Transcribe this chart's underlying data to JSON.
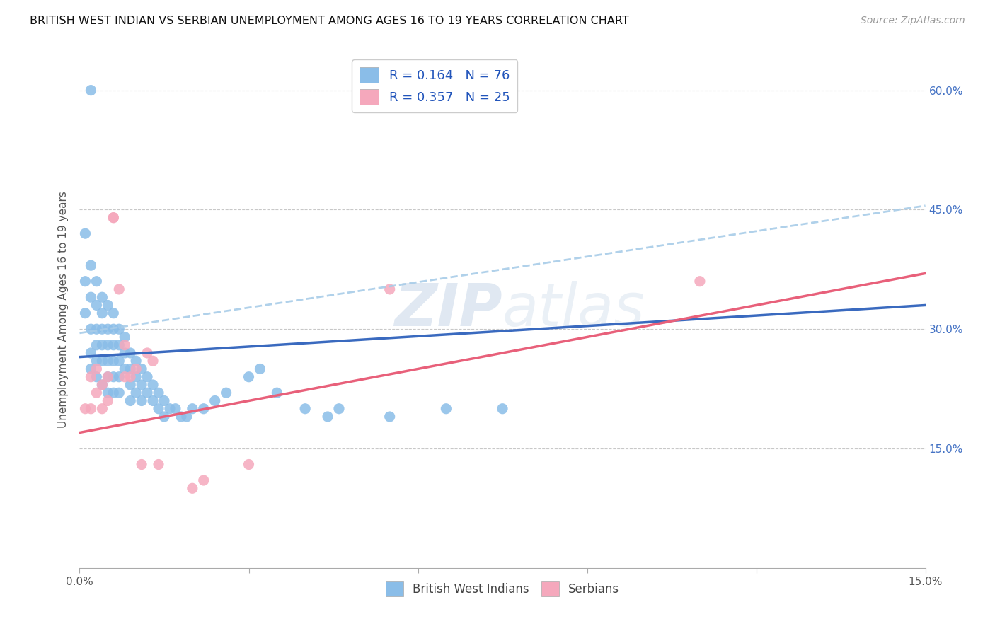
{
  "title": "BRITISH WEST INDIAN VS SERBIAN UNEMPLOYMENT AMONG AGES 16 TO 19 YEARS CORRELATION CHART",
  "source": "Source: ZipAtlas.com",
  "ylabel": "Unemployment Among Ages 16 to 19 years",
  "xlim": [
    0.0,
    0.15
  ],
  "ylim": [
    0.0,
    0.65
  ],
  "color_blue": "#8abde8",
  "color_pink": "#f5a8bc",
  "color_blue_line": "#3a6abf",
  "color_pink_line": "#e8607a",
  "color_dashed": "#a8cce8",
  "watermark_color": "#ccdaea",
  "legend_r1": "R = 0.164",
  "legend_n1": "N = 76",
  "legend_r2": "R = 0.357",
  "legend_n2": "N = 25",
  "blue_line_x0": 0.0,
  "blue_line_y0": 0.265,
  "blue_line_x1": 0.15,
  "blue_line_y1": 0.33,
  "pink_line_x0": 0.0,
  "pink_line_y0": 0.17,
  "pink_line_x1": 0.15,
  "pink_line_y1": 0.37,
  "dash_line_x0": 0.0,
  "dash_line_y0": 0.295,
  "dash_line_x1": 0.15,
  "dash_line_y1": 0.455,
  "bwi_x": [
    0.001,
    0.001,
    0.001,
    0.002,
    0.002,
    0.002,
    0.002,
    0.002,
    0.003,
    0.003,
    0.003,
    0.003,
    0.003,
    0.003,
    0.004,
    0.004,
    0.004,
    0.004,
    0.004,
    0.004,
    0.005,
    0.005,
    0.005,
    0.005,
    0.005,
    0.005,
    0.006,
    0.006,
    0.006,
    0.006,
    0.006,
    0.006,
    0.007,
    0.007,
    0.007,
    0.007,
    0.007,
    0.008,
    0.008,
    0.008,
    0.009,
    0.009,
    0.009,
    0.009,
    0.01,
    0.01,
    0.01,
    0.011,
    0.011,
    0.011,
    0.012,
    0.012,
    0.013,
    0.013,
    0.014,
    0.014,
    0.015,
    0.015,
    0.016,
    0.017,
    0.018,
    0.019,
    0.02,
    0.022,
    0.024,
    0.026,
    0.03,
    0.032,
    0.035,
    0.04,
    0.044,
    0.046,
    0.055,
    0.065,
    0.075,
    0.002
  ],
  "bwi_y": [
    0.42,
    0.36,
    0.32,
    0.38,
    0.34,
    0.3,
    0.27,
    0.25,
    0.36,
    0.33,
    0.3,
    0.28,
    0.26,
    0.24,
    0.34,
    0.32,
    0.3,
    0.28,
    0.26,
    0.23,
    0.33,
    0.3,
    0.28,
    0.26,
    0.24,
    0.22,
    0.32,
    0.3,
    0.28,
    0.26,
    0.24,
    0.22,
    0.3,
    0.28,
    0.26,
    0.24,
    0.22,
    0.29,
    0.27,
    0.25,
    0.27,
    0.25,
    0.23,
    0.21,
    0.26,
    0.24,
    0.22,
    0.25,
    0.23,
    0.21,
    0.24,
    0.22,
    0.23,
    0.21,
    0.22,
    0.2,
    0.21,
    0.19,
    0.2,
    0.2,
    0.19,
    0.19,
    0.2,
    0.2,
    0.21,
    0.22,
    0.24,
    0.25,
    0.22,
    0.2,
    0.19,
    0.2,
    0.19,
    0.2,
    0.2,
    0.6
  ],
  "serbian_x": [
    0.001,
    0.002,
    0.002,
    0.003,
    0.003,
    0.004,
    0.004,
    0.005,
    0.005,
    0.006,
    0.006,
    0.007,
    0.008,
    0.008,
    0.009,
    0.01,
    0.011,
    0.012,
    0.013,
    0.014,
    0.02,
    0.022,
    0.03,
    0.055,
    0.11
  ],
  "serbian_y": [
    0.2,
    0.24,
    0.2,
    0.25,
    0.22,
    0.23,
    0.2,
    0.24,
    0.21,
    0.44,
    0.44,
    0.35,
    0.28,
    0.24,
    0.24,
    0.25,
    0.13,
    0.27,
    0.26,
    0.13,
    0.1,
    0.11,
    0.13,
    0.35,
    0.36
  ]
}
